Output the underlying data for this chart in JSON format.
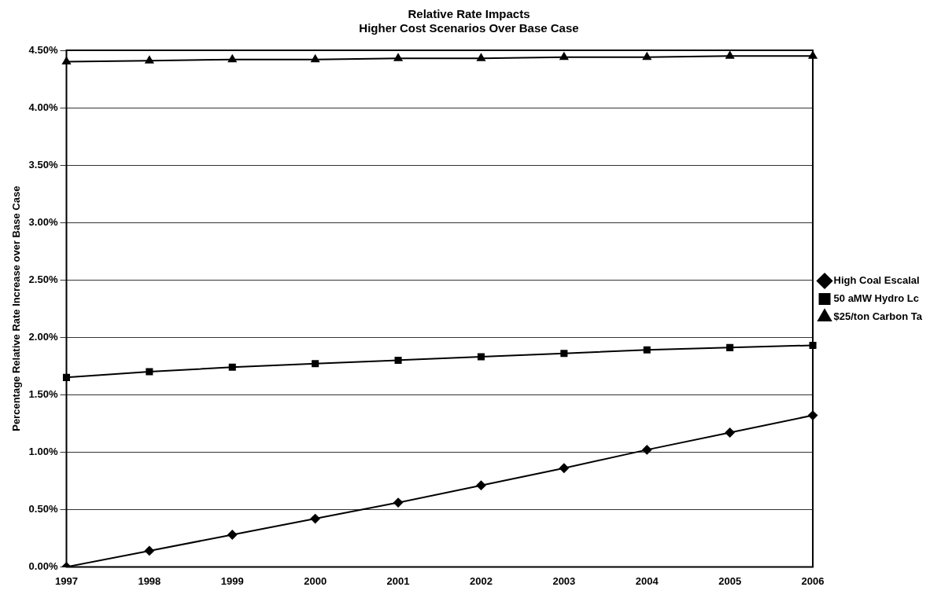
{
  "chart_data": {
    "type": "line",
    "title": "Relative Rate Impacts",
    "subtitle": "Higher Cost Scenarios Over Base Case",
    "ylabel": "Percentage Relative Rate Increase over Base Case",
    "categories": [
      "1997",
      "1998",
      "1999",
      "2000",
      "2001",
      "2002",
      "2003",
      "2004",
      "2005",
      "2006"
    ],
    "series": [
      {
        "name": "High Coal Escalal",
        "color": "#000000",
        "marker": "diamond",
        "values": [
          0,
          0.14,
          0.28,
          0.42,
          0.56,
          0.71,
          0.86,
          1.02,
          1.17,
          1.32
        ]
      },
      {
        "name": "50 aMW Hydro Lc",
        "color": "#000000",
        "marker": "square",
        "values": [
          1.65,
          1.7,
          1.74,
          1.77,
          1.8,
          1.83,
          1.86,
          1.89,
          1.91,
          1.93
        ]
      },
      {
        "name": "$25/ton Carbon Ta",
        "color": "#000000",
        "marker": "triangle",
        "values": [
          4.4,
          4.41,
          4.42,
          4.42,
          4.43,
          4.43,
          4.44,
          4.44,
          4.45,
          4.45
        ]
      }
    ],
    "ylim": [
      0,
      4.5
    ],
    "yticks": [
      {
        "value": 0,
        "label": "0.00%"
      },
      {
        "value": 0.5,
        "label": "0.50%"
      },
      {
        "value": 1,
        "label": "1.00%"
      },
      {
        "value": 1.5,
        "label": "1.50%"
      },
      {
        "value": 2,
        "label": "2.00%"
      },
      {
        "value": 2.5,
        "label": "2.50%"
      },
      {
        "value": 3,
        "label": "3.00%"
      },
      {
        "value": 3.5,
        "label": "3.50%"
      },
      {
        "value": 4,
        "label": "4.00%"
      },
      {
        "value": 4.5,
        "label": "4.50%"
      }
    ],
    "grid": "y",
    "legend": "right",
    "line_style": "solid"
  }
}
